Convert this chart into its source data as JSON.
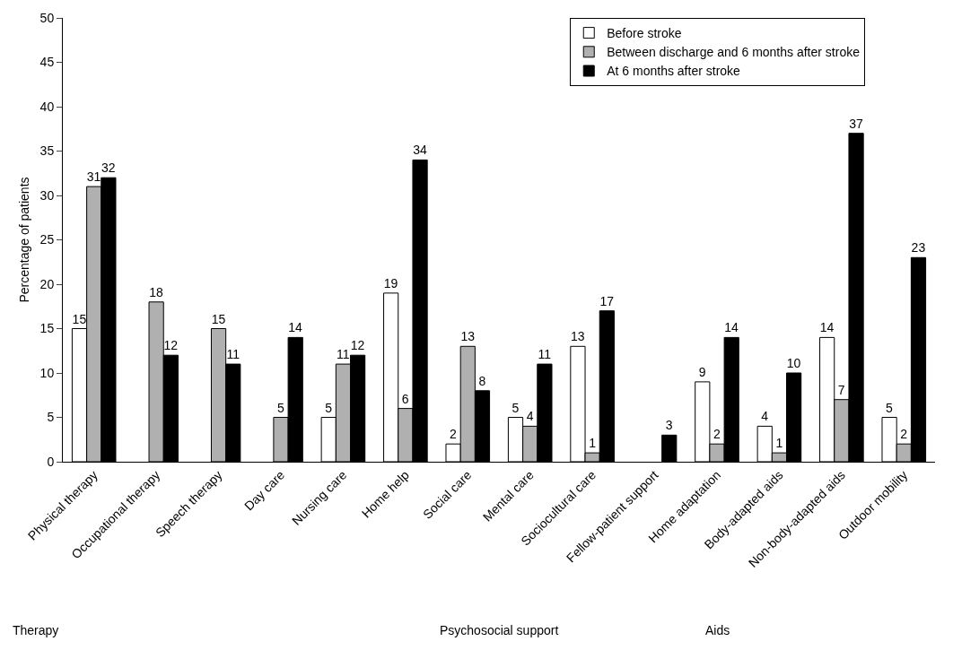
{
  "chart_data": {
    "type": "bar",
    "ylabel": "Percentage of patients",
    "categories": [
      "Physical therapy",
      "Occupational therapy",
      "Speech therapy",
      "Day care",
      "Nursing care",
      "Home help",
      "Social care",
      "Mental care",
      "Sociocultural care",
      "Fellow-patient support",
      "Home adaptation",
      "Body-adapted aids",
      "Non-body-adapted aids",
      "Outdoor mobility"
    ],
    "series": [
      {
        "name": "Before stroke",
        "color": "#ffffff",
        "values": [
          15,
          null,
          null,
          null,
          5,
          19,
          2,
          5,
          13,
          null,
          9,
          4,
          14,
          5
        ]
      },
      {
        "name": "Between discharge and 6 months after stroke",
        "color": "#b0b0b0",
        "values": [
          31,
          18,
          15,
          5,
          11,
          6,
          13,
          4,
          1,
          null,
          2,
          1,
          7,
          2
        ]
      },
      {
        "name": "At 6 months after stroke",
        "color": "#000000",
        "values": [
          32,
          12,
          11,
          14,
          12,
          34,
          8,
          11,
          17,
          3,
          14,
          10,
          37,
          23
        ]
      }
    ],
    "ylim": [
      0,
      50
    ],
    "yticks": [
      0,
      5,
      10,
      15,
      20,
      25,
      30,
      35,
      40,
      45,
      50
    ],
    "grid": false,
    "legend": "top right",
    "data_labels": true,
    "annotations": [
      "Therapy",
      "Psychosocial support",
      "Aids"
    ]
  }
}
